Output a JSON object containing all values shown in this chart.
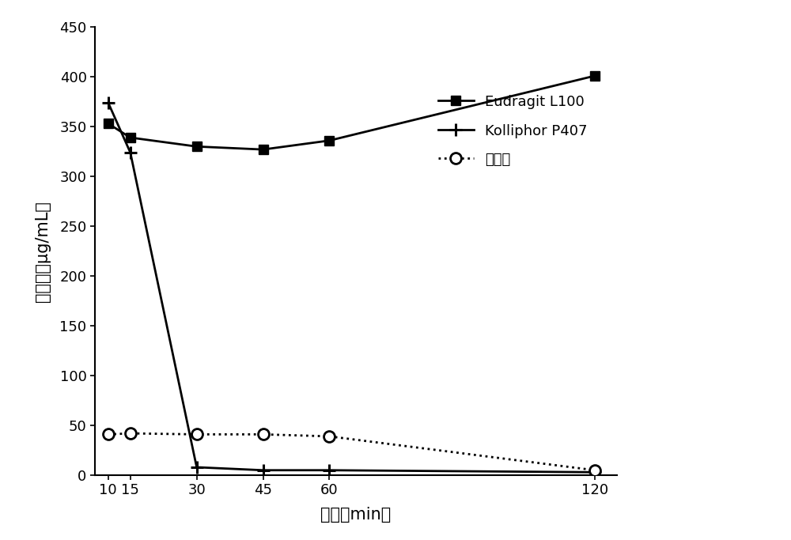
{
  "x": [
    10,
    15,
    30,
    45,
    60,
    120
  ],
  "eudragit_y": [
    353,
    339,
    330,
    327,
    336,
    401
  ],
  "kolliphor_y": [
    374,
    324,
    8,
    5,
    5,
    3
  ],
  "control_y": [
    41,
    42,
    41,
    41,
    39,
    5
  ],
  "xlabel": "时间（min）",
  "ylabel": "溶解度（μg/mL）",
  "ylim": [
    0,
    450
  ],
  "yticks": [
    0,
    50,
    100,
    150,
    200,
    250,
    300,
    350,
    400,
    450
  ],
  "xticks": [
    10,
    15,
    30,
    45,
    60,
    120
  ],
  "legend_eudragit": "Eudragit L100",
  "legend_kolliphor": "Kolliphor P407",
  "legend_control": "对照组",
  "line_color": "#000000",
  "background_color": "#ffffff",
  "xlabel_fontsize": 15,
  "ylabel_fontsize": 15,
  "tick_fontsize": 13,
  "legend_fontsize": 13
}
